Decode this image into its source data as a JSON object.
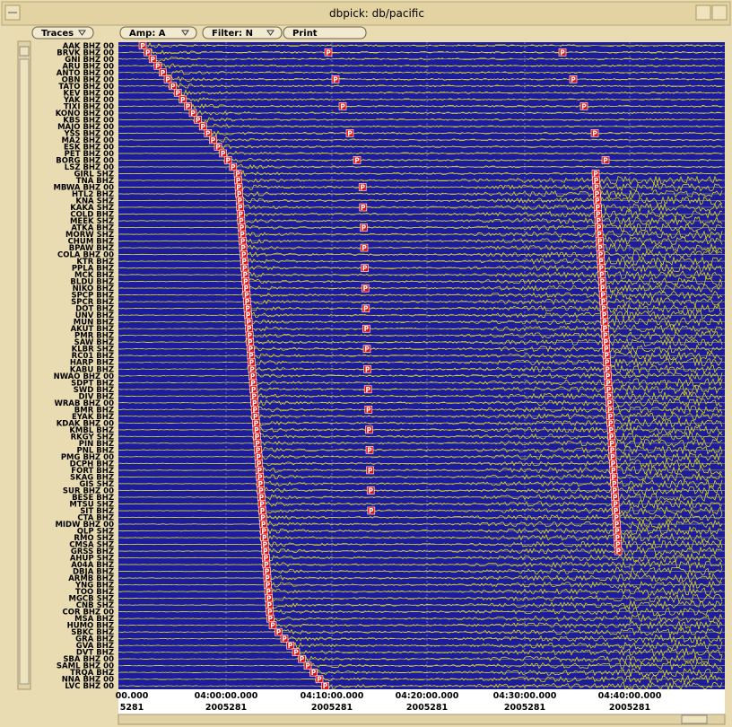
{
  "window": {
    "title": "dbpick: db/pacific"
  },
  "toolbar": {
    "buttons": [
      "Traces",
      "Amp: A",
      "Filter: N",
      "Print"
    ]
  },
  "stations": [
    "AAK BHZ 00",
    "BRVK BHZ 00",
    "GNI BHZ 00",
    "ARU BHZ 00",
    "ANTO BHZ 00",
    "OBN BHZ 00",
    "TATO BHZ 00",
    "KEV BHZ 00",
    "YAK BHZ 00",
    "TIXI BHZ 00",
    "KONO BHZ 00",
    "KBS BHZ 00",
    "MAJO BHZ 00",
    "YSS BHZ 00",
    "MA2 BHZ 00",
    "ESK BHZ 00",
    "PET BHZ 00",
    "BORG BHZ 00",
    "LSZ BHZ 00",
    "GIRL SHZ",
    "TNA BHZ",
    "MBWA BHZ 00",
    "HTL2 BHZ",
    "KNA SHZ",
    "KAKA SHZ",
    "COLD BHZ",
    "MEEK SHZ",
    "ATKA BHZ",
    "MORW SHZ",
    "CHUM BHZ",
    "BPAW BHZ",
    "COLA BHZ 00",
    "KTR BHZ",
    "PPLA BHZ",
    "MCK BHZ",
    "BLDU BHZ",
    "NIKO BHZ",
    "SPCP BHZ",
    "SPCR BHZ",
    "DOT BHZ",
    "UNV BHZ",
    "MUN BHZ",
    "AKUT BHZ",
    "PMR BHZ",
    "SAW BHZ",
    "KLBR SHZ",
    "RC01 BHZ",
    "HARP BHZ",
    "KABU BHZ",
    "NWAO BHZ 00",
    "SDPT BHZ",
    "SWD BHZ",
    "DIV BHZ",
    "WRAB BHZ 00",
    "BMR BHZ",
    "EYAK BHZ",
    "KDAK BHZ 00",
    "KMBL BHZ",
    "RKGY SHZ",
    "PIN BHZ",
    "PNL BHZ",
    "PMG BHZ 00",
    "DCPH BHZ",
    "FORT BHZ",
    "SKAG BHZ",
    "GIS SHZ",
    "SUR BHZ 00",
    "BESE BHZ",
    "MTSU SHZ",
    "SIT BHZ",
    "CTA BHZ",
    "MIDW BHZ 00",
    "QLP SHZ",
    "RMO SHZ",
    "CMSA SHZ",
    "GRSS BHZ",
    "AHUP SHZ",
    "A04A BHZ",
    "DBJA BHZ",
    "ARMB BHZ",
    "YNG BHZ",
    "TOO BHZ",
    "MGCB SHZ",
    "CNB SHZ",
    "COR BHZ 00",
    "MSA BHZ",
    "HUMO BHZ",
    "SBKC BHZ",
    "GRA BHZ",
    "GVA BHZ",
    "DVT BHZ",
    "SBA BHZ 00",
    "SAML BHZ 00",
    "TRQA BHZ",
    "NNA BHZ 00",
    "LVC BHZ 00"
  ],
  "time_axis": [
    {
      "time": "00.000",
      "date": "5281"
    },
    {
      "time": "04:00:00.000",
      "date": "2005281"
    },
    {
      "time": "04:10:00.000",
      "date": "2005281"
    },
    {
      "time": "04:20:00.000",
      "date": "2005281"
    },
    {
      "time": "04:30:00.000",
      "date": "2005281"
    },
    {
      "time": "04:40:00.000",
      "date": "2005281"
    }
  ],
  "pick_label": "P"
}
